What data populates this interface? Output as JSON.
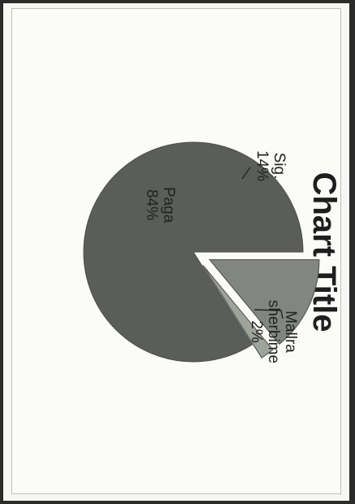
{
  "chart_data": {
    "type": "pie",
    "title": "Chart Title",
    "orientation_note": "",
    "slices": [
      {
        "name": "Paga",
        "value": 84,
        "label_value": "84%",
        "color": "#5a5d59"
      },
      {
        "name": "Sig.",
        "value": 14,
        "label_value": "14%",
        "color": "#818680"
      },
      {
        "name_lines": [
          "Mallra",
          "sherbime"
        ],
        "name": "Mallra sherbime",
        "value": 2,
        "label_value": "2%",
        "color": "#9ea39c"
      }
    ],
    "legend": "none"
  }
}
